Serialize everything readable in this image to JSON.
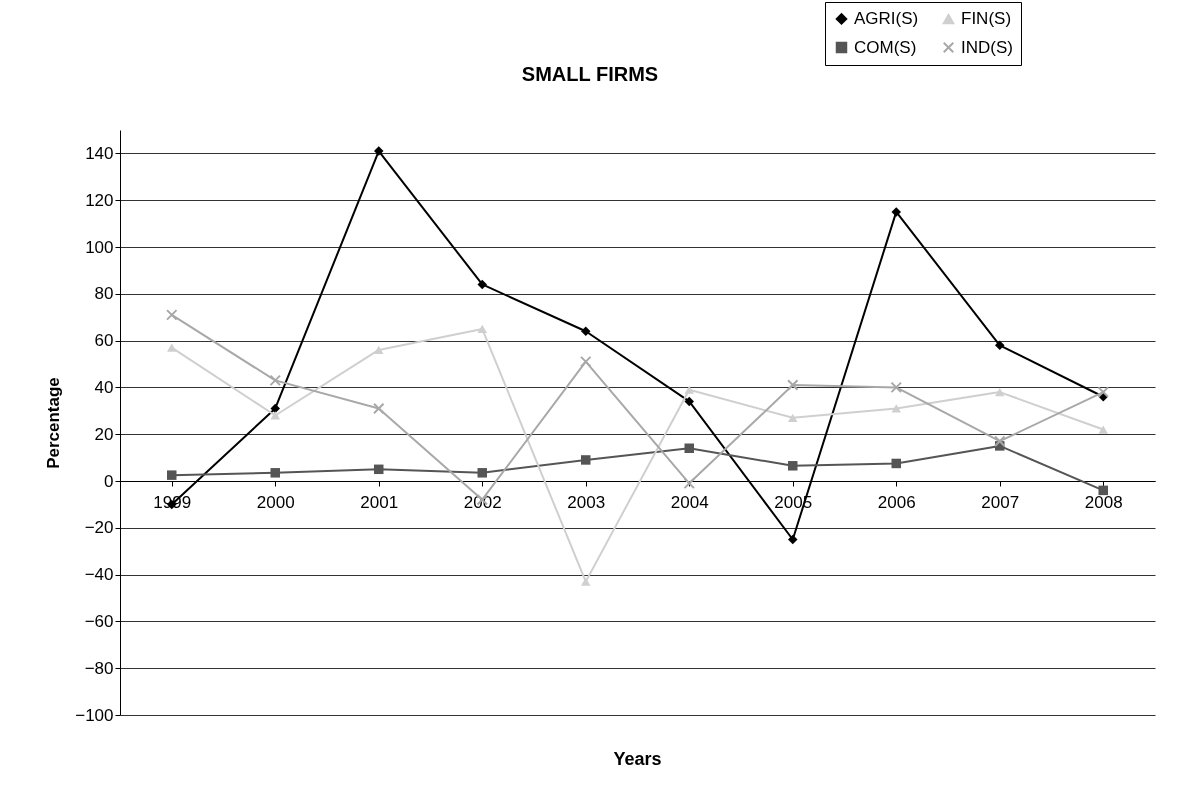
{
  "chart_data": {
    "type": "line",
    "title": "SMALL FIRMS",
    "xlabel": "Years",
    "ylabel": "Percentage",
    "categories": [
      "1999",
      "2000",
      "2001",
      "2002",
      "2003",
      "2004",
      "2005",
      "2006",
      "2007",
      "2008"
    ],
    "series": [
      {
        "name": "AGRI(S)",
        "color": "#000000",
        "marker": "diamond",
        "values": [
          -10,
          31,
          141,
          84,
          64,
          34,
          -25,
          115,
          58,
          36
        ]
      },
      {
        "name": "COM(S)",
        "color": "#555555",
        "marker": "square",
        "values": [
          2.5,
          3.5,
          5,
          3.5,
          9,
          14,
          6.5,
          7.5,
          15,
          -4
        ]
      },
      {
        "name": "FIN(S)",
        "color": "#cfcfcf",
        "marker": "triangle",
        "values": [
          57,
          28,
          56,
          65,
          -43,
          39,
          27,
          31,
          38,
          22
        ]
      },
      {
        "name": "IND(S)",
        "color": "#a8a8a8",
        "marker": "cross",
        "values": [
          71,
          43,
          31,
          -8,
          51,
          -1,
          41,
          40,
          17,
          38
        ]
      }
    ],
    "ylim": [
      -100,
      150
    ],
    "yticks": [
      -100,
      -80,
      -60,
      -40,
      -20,
      0,
      20,
      40,
      60,
      80,
      100,
      120,
      140
    ],
    "grid": "y",
    "legend": "top right"
  }
}
